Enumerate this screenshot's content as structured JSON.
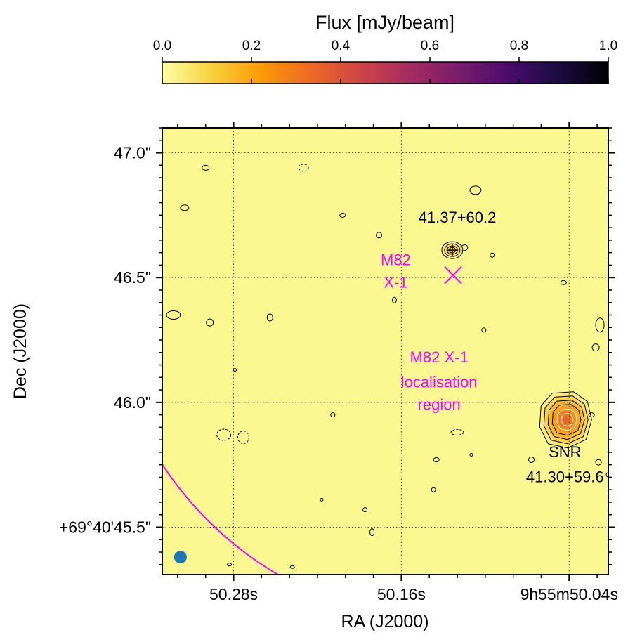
{
  "chart_data": {
    "type": "heatmap",
    "colorbar": {
      "label": "Flux [mJy/beam]",
      "range": [
        0.0,
        1.0
      ],
      "ticks": [
        "0.0",
        "0.2",
        "0.4",
        "0.6",
        "0.8",
        "1.0"
      ],
      "tick_values": [
        0.0,
        0.2,
        0.4,
        0.6,
        0.8,
        1.0
      ],
      "colormap": "inferno_r",
      "stops": [
        "#fcffa4",
        "#f7d13d",
        "#fb9b06",
        "#ed6925",
        "#cf4446",
        "#a52c60",
        "#781c6d",
        "#4a0c6b",
        "#1b0c41",
        "#000004"
      ]
    },
    "xaxis": {
      "label": "RA (J2000)",
      "range_s": [
        50.331,
        50.012
      ],
      "major_ticks_s": [
        50.28,
        50.16,
        50.04
      ],
      "major_tick_labels": [
        "50.28s",
        "50.16s",
        "9h55m50.04s"
      ],
      "grid": true
    },
    "yaxis": {
      "label": "Dec (J2000)",
      "range_arcsec": [
        45.31,
        47.1
      ],
      "major_ticks_arcsec": [
        45.5,
        46.0,
        46.5,
        47.0
      ],
      "major_tick_labels": [
        "+69°40'45.5\"",
        "46.0\"",
        "46.5\"",
        "47.0\""
      ],
      "grid": true
    },
    "background_level_mJy": 0.02,
    "localisation_circle": {
      "center_ra_s": 50.123,
      "center_dec_arcsec": 46.51,
      "radius_arcsec": 1.39,
      "color": "#ff00ff"
    },
    "markers": [
      {
        "kind": "cross",
        "ra_s": 50.123,
        "dec_arcsec": 46.51,
        "color": "#ff00ff"
      },
      {
        "kind": "beam",
        "ra_s": 50.318,
        "dec_arcsec": 45.38,
        "color": "#1f77b4"
      }
    ],
    "sources": [
      {
        "ra_s": 50.1236,
        "dec_arcsec": 46.61,
        "peak_mJy": 0.15
      },
      {
        "ra_s": 50.041,
        "dec_arcsec": 45.93,
        "peak_mJy": 0.38
      }
    ],
    "annotations": [
      {
        "text": "41.37+60.2",
        "ra_s": 50.12,
        "dec_arcsec": 46.72,
        "color": "#000000"
      },
      {
        "text": "M82",
        "ra_s": 50.164,
        "dec_arcsec": 46.55,
        "color": "#ff00ff"
      },
      {
        "text": "X-1",
        "ra_s": 50.164,
        "dec_arcsec": 46.46,
        "color": "#ff00ff"
      },
      {
        "text": "M82 X-1",
        "ra_s": 50.133,
        "dec_arcsec": 46.16,
        "color": "#ff00ff"
      },
      {
        "text": "localisation",
        "ra_s": 50.133,
        "dec_arcsec": 46.06,
        "color": "#ff00ff"
      },
      {
        "text": "region",
        "ra_s": 50.133,
        "dec_arcsec": 45.97,
        "color": "#ff00ff"
      },
      {
        "text": "SNR",
        "ra_s": 50.043,
        "dec_arcsec": 45.78,
        "color": "#000000"
      },
      {
        "text": "41.30+59.6",
        "ra_s": 50.043,
        "dec_arcsec": 45.68,
        "color": "#000000"
      }
    ]
  }
}
